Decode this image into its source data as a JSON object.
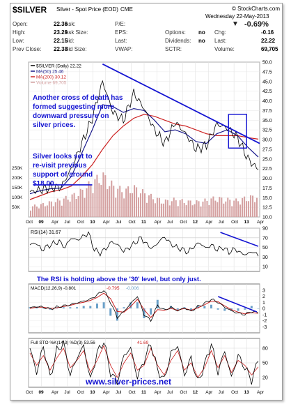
{
  "header": {
    "symbol": "$SILVER",
    "name": "Silver - Spot Price (EOD)",
    "exchange": "CME",
    "brand": "© StockCharts.com",
    "date": "Wednesday 22-May-2013",
    "change_pct": "-0.69%",
    "rows": [
      [
        {
          "label": "Open:",
          "value": "22.36"
        },
        {
          "label": "Ask:",
          "value": ""
        },
        {
          "label": "P/E:",
          "value": ""
        },
        {
          "label": "",
          "value": ""
        },
        {
          "label": "",
          "value": ""
        }
      ],
      [
        {
          "label": "High:",
          "value": "23.29"
        },
        {
          "label": "Ask Size:",
          "value": ""
        },
        {
          "label": "EPS:",
          "value": ""
        },
        {
          "label": "Options:",
          "value": "no"
        },
        {
          "label": "Chg:",
          "value": "-0.16"
        }
      ],
      [
        {
          "label": "Low:",
          "value": "22.15"
        },
        {
          "label": "Bid:",
          "value": ""
        },
        {
          "label": "Last:",
          "value": ""
        },
        {
          "label": "Dividends:",
          "value": "no"
        },
        {
          "label": "Last:",
          "value": "22.22"
        }
      ],
      [
        {
          "label": "Prev Close:",
          "value": "22.38"
        },
        {
          "label": "Bid Size:",
          "value": ""
        },
        {
          "label": "VWAP:",
          "value": ""
        },
        {
          "label": "SCTR:",
          "value": ""
        },
        {
          "label": "Volume:",
          "value": "69,705"
        }
      ]
    ]
  },
  "colors": {
    "price": "#000000",
    "ma50": "#1a1a8c",
    "ma200": "#cc2222",
    "volume": "#d4a0a0",
    "annotation_text": "#1414d2",
    "trendline": "#1414d2",
    "macd_signal": "#cc2222",
    "histogram": "#6aa0c8"
  },
  "annotations": {
    "cross": "Another cross of death has formed suggesting more downward pressure on silver prices.",
    "support": "Silver looks set to re-visit previous support of around $18.00",
    "rsi": "The RSI is holding above the '30' level, but only just.",
    "site": "www.silver-prices.net"
  },
  "chart_data": [
    {
      "type": "line",
      "panel": "price",
      "legend": [
        {
          "text": "$SILVER (Daily) 22.22",
          "color": "#000000"
        },
        {
          "text": "MA(50) 25.46",
          "color": "#1a1a8c"
        },
        {
          "text": "MA(200) 30.12",
          "color": "#cc2222"
        },
        {
          "text": "Volume 69,705",
          "color": "#d4a0a0"
        }
      ],
      "x": [
        "2009-10",
        "2010-01",
        "2010-04",
        "2010-07",
        "2010-10",
        "2011-01",
        "2011-03",
        "2011-04",
        "2011-05",
        "2011-06",
        "2011-08",
        "2011-09",
        "2011-10",
        "2011-12",
        "2012-02",
        "2012-04",
        "2012-06",
        "2012-08",
        "2012-10",
        "2012-12",
        "2013-02",
        "2013-04",
        "2013-05"
      ],
      "series": [
        {
          "name": "$SILVER",
          "values": [
            16.5,
            17.0,
            17.6,
            17.7,
            22.5,
            29.0,
            35.5,
            45.0,
            37.0,
            35.0,
            42.0,
            38.0,
            32.5,
            29.0,
            34.5,
            31.5,
            27.5,
            28.5,
            34.0,
            33.0,
            30.5,
            25.0,
            22.2
          ]
        },
        {
          "name": "MA(50)",
          "values": [
            16.0,
            16.8,
            17.3,
            17.5,
            20.5,
            26.5,
            32.5,
            39.0,
            38.5,
            37.0,
            38.0,
            37.5,
            35.0,
            32.0,
            32.5,
            31.5,
            29.5,
            29.0,
            31.5,
            32.5,
            31.0,
            28.0,
            25.5
          ]
        },
        {
          "name": "MA(200)",
          "values": [
            14.5,
            15.5,
            16.5,
            17.0,
            18.0,
            20.5,
            23.5,
            27.5,
            31.0,
            33.5,
            35.5,
            36.5,
            36.0,
            35.0,
            34.0,
            33.5,
            32.5,
            31.5,
            31.0,
            31.0,
            31.0,
            30.5,
            30.1
          ]
        }
      ],
      "volume": [
        60,
        70,
        85,
        100,
        120,
        150,
        200,
        240,
        180,
        150,
        170,
        140,
        110,
        90,
        100,
        90,
        85,
        95,
        110,
        100,
        95,
        110,
        120
      ],
      "volume_axis_ticks": [
        "250K",
        "200K",
        "150K",
        "100K",
        "50K"
      ],
      "ylim": [
        10,
        50
      ],
      "y_ticks": [
        "50.0",
        "47.5",
        "45.0",
        "42.5",
        "40.0",
        "37.5",
        "35.0",
        "32.5",
        "30.0",
        "27.5",
        "25.0",
        "22.5",
        "20.0",
        "17.5",
        "15.0",
        "12.5",
        "10.0"
      ]
    },
    {
      "type": "line",
      "panel": "rsi",
      "legend": "RSI(14) 31.67",
      "ylim": [
        0,
        90
      ],
      "y_ticks": [
        "90",
        "70",
        "50",
        "30",
        "10"
      ],
      "series": [
        {
          "name": "RSI(14)",
          "values": [
            55,
            60,
            45,
            52,
            58,
            62,
            50,
            70,
            65,
            72,
            80,
            45,
            38,
            48,
            62,
            55,
            42,
            50,
            60,
            70,
            55,
            48,
            62,
            72,
            58,
            50,
            46,
            40,
            52,
            60,
            48,
            55,
            45,
            50,
            40,
            47,
            38,
            35,
            42,
            31.67
          ]
        }
      ]
    },
    {
      "type": "line",
      "panel": "macd",
      "legend": [
        "MACD(12,26,9) -0.801",
        "-0.795",
        "-0.006"
      ],
      "ylim": [
        -4,
        4
      ],
      "y_ticks": [
        "3",
        "2",
        "1",
        "0",
        "-1",
        "-2",
        "-3"
      ],
      "series": [
        {
          "name": "MACD",
          "values": [
            0.1,
            0.3,
            0.2,
            -0.1,
            0.2,
            0.4,
            0.6,
            0.9,
            1.2,
            1.5,
            2.2,
            3.0,
            1.0,
            -1.5,
            -0.5,
            0.8,
            2.0,
            -1.0,
            -2.0,
            0.5,
            -0.3,
            0.2,
            -0.4,
            0.1,
            -0.5,
            0.3,
            0.8,
            1.5,
            1.0,
            0.2,
            -0.4,
            -0.8,
            -1.0,
            -0.5,
            -0.8
          ]
        },
        {
          "name": "Signal",
          "values": [
            0.0,
            0.2,
            0.2,
            0.0,
            0.1,
            0.3,
            0.5,
            0.8,
            1.0,
            1.3,
            1.8,
            2.5,
            1.6,
            -0.5,
            -0.6,
            0.3,
            1.5,
            -0.2,
            -1.5,
            -0.2,
            -0.3,
            0.0,
            -0.3,
            0.0,
            -0.3,
            0.1,
            0.6,
            1.2,
            1.1,
            0.4,
            -0.2,
            -0.6,
            -0.9,
            -0.7,
            -0.8
          ]
        }
      ]
    },
    {
      "type": "line",
      "panel": "stochastic",
      "legend": [
        "Full STO %K(14,3) %D(3) 53.56",
        "41.69"
      ],
      "ylim": [
        0,
        100
      ],
      "y_ticks": [
        "80",
        "50",
        "20"
      ],
      "series": [
        {
          "name": "%K",
          "values": [
            80,
            30,
            85,
            20,
            75,
            90,
            25,
            60,
            85,
            15,
            70,
            95,
            30,
            10,
            65,
            80,
            20,
            55,
            90,
            35,
            15,
            70,
            85,
            25,
            60,
            10,
            45,
            90,
            30,
            75,
            20,
            65,
            40,
            15,
            53.56
          ]
        },
        {
          "name": "%D",
          "values": [
            70,
            45,
            65,
            35,
            60,
            80,
            40,
            55,
            75,
            30,
            55,
            85,
            45,
            20,
            50,
            70,
            35,
            45,
            80,
            45,
            25,
            55,
            75,
            35,
            50,
            20,
            40,
            75,
            40,
            65,
            30,
            55,
            45,
            25,
            41.69
          ]
        }
      ]
    }
  ],
  "x_axis_labels": [
    "Oct",
    "09",
    "Apr",
    "Jul",
    "Oct",
    "10",
    "Apr",
    "Jul",
    "Oct",
    "11",
    "Apr",
    "Jul",
    "Oct",
    "12",
    "Apr",
    "Jul",
    "Oct",
    "13",
    "Apr"
  ]
}
